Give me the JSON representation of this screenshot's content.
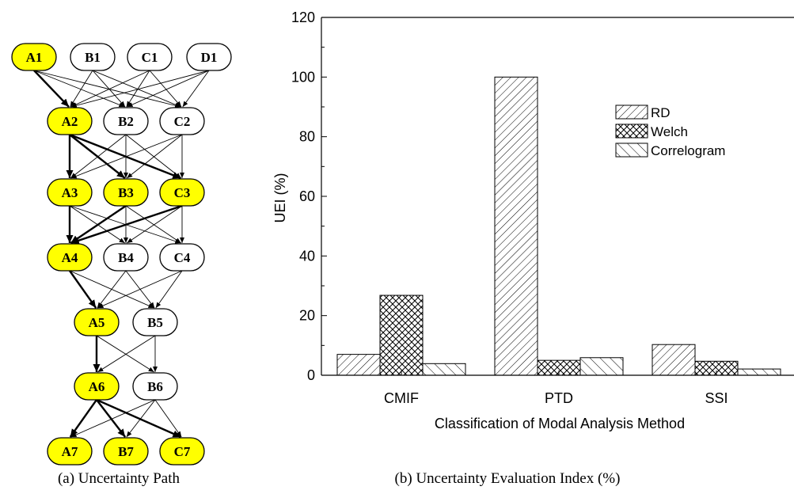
{
  "diagram": {
    "caption": "(a) Uncertainty Path",
    "highlight_color": "#ffff00",
    "rows": [
      [
        "A1",
        "B1",
        "C1",
        "D1"
      ],
      [
        "A2",
        "B2",
        "C2"
      ],
      [
        "A3",
        "B3",
        "C3"
      ],
      [
        "A4",
        "B4",
        "C4"
      ],
      [
        "A5",
        "B5"
      ],
      [
        "A6",
        "B6"
      ],
      [
        "A7",
        "B7",
        "C7"
      ]
    ],
    "highlighted": [
      "A1",
      "A2",
      "A3",
      "B3",
      "C3",
      "A4",
      "A5",
      "A6",
      "A7",
      "B7",
      "C7"
    ],
    "bold_edges": [
      [
        "A1",
        "A2"
      ],
      [
        "A2",
        "A3"
      ],
      [
        "A2",
        "B3"
      ],
      [
        "A2",
        "C3"
      ],
      [
        "A3",
        "A4"
      ],
      [
        "B3",
        "A4"
      ],
      [
        "C3",
        "A4"
      ],
      [
        "A4",
        "A5"
      ],
      [
        "A5",
        "A6"
      ],
      [
        "A6",
        "A7"
      ],
      [
        "A6",
        "B7"
      ],
      [
        "A6",
        "C7"
      ]
    ]
  },
  "chart_caption": "(b) Uncertainty Evaluation Index (%)",
  "chart_data": {
    "type": "bar",
    "categories": [
      "CMIF",
      "PTD",
      "SSI"
    ],
    "series": [
      {
        "name": "RD",
        "values": [
          7,
          100,
          10.3
        ],
        "pattern": "forward-diagonal"
      },
      {
        "name": "Welch",
        "values": [
          26.8,
          5,
          4.7
        ],
        "pattern": "crosshatch"
      },
      {
        "name": "Correlogram",
        "values": [
          3.9,
          5.9,
          2.1
        ],
        "pattern": "back-diagonal"
      }
    ],
    "xlabel": "Classification of Modal Analysis Method",
    "ylabel": "UEI (%)",
    "ylim": [
      0,
      120
    ],
    "yticks": [
      0,
      20,
      40,
      60,
      80,
      100,
      120
    ],
    "grid": false,
    "legend_position": "top-right"
  }
}
